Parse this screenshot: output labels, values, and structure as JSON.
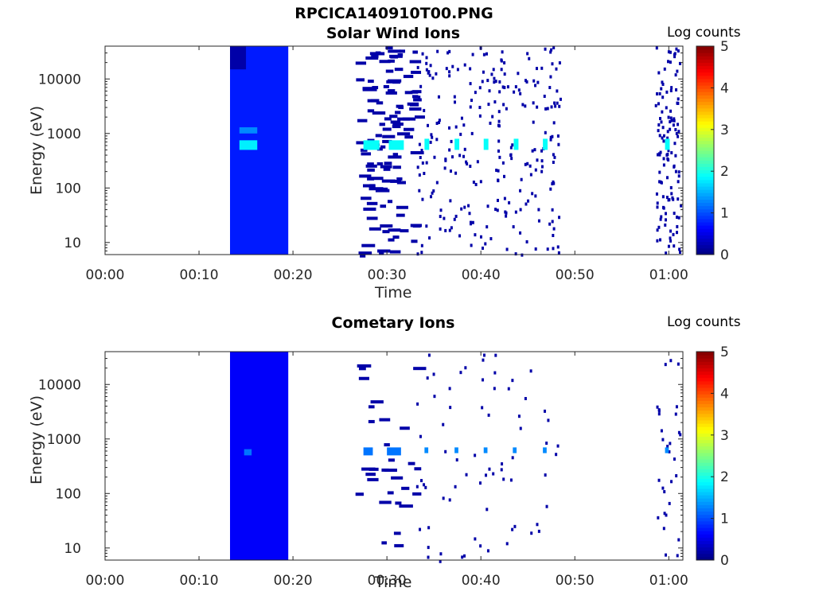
{
  "figure": {
    "title": "RPCICA140910T00.PNG"
  },
  "colorbar": {
    "label": "Log counts",
    "ticks": [
      "0",
      "1",
      "2",
      "3",
      "4",
      "5"
    ],
    "range": [
      0,
      5
    ],
    "colormap": "jet"
  },
  "chart_data": [
    {
      "type": "heatmap",
      "title": "Solar Wind Ions",
      "xlabel": "Time",
      "ylabel": "Energy (eV)",
      "xticks": [
        "00:00",
        "00:10",
        "00:20",
        "00:30",
        "00:40",
        "00:50",
        "01:00"
      ],
      "yticks": [
        "10",
        "100",
        "1000",
        "10000"
      ],
      "xlim_minutes": [
        0,
        61.5
      ],
      "ylim_eV": [
        6,
        40000
      ],
      "yscale": "log",
      "colorbar_label": "Log counts",
      "blocks": [
        {
          "t0": 13.3,
          "t1": 19.5,
          "e0": 6,
          "e1": 40000,
          "value": 0.75
        },
        {
          "t0": 14.3,
          "t1": 16.2,
          "e0": 500,
          "e1": 750,
          "value": 1.8
        },
        {
          "t0": 14.3,
          "t1": 16.2,
          "e0": 1000,
          "e1": 1300,
          "value": 1.3
        },
        {
          "t0": 13.3,
          "t1": 15.0,
          "e0": 15000,
          "e1": 40000,
          "value": 0.2
        },
        {
          "t0": 27.5,
          "t1": 29.2,
          "e0": 500,
          "e1": 750,
          "value": 1.9
        },
        {
          "t0": 30.2,
          "t1": 31.8,
          "e0": 500,
          "e1": 750,
          "value": 1.9
        },
        {
          "t0": 34.0,
          "t1": 34.5,
          "e0": 500,
          "e1": 800,
          "value": 1.9
        },
        {
          "t0": 37.2,
          "t1": 37.7,
          "e0": 500,
          "e1": 800,
          "value": 1.9
        },
        {
          "t0": 40.3,
          "t1": 40.8,
          "e0": 500,
          "e1": 800,
          "value": 1.9
        },
        {
          "t0": 43.5,
          "t1": 44.0,
          "e0": 500,
          "e1": 800,
          "value": 1.9
        },
        {
          "t0": 46.6,
          "t1": 47.1,
          "e0": 500,
          "e1": 800,
          "value": 1.9
        },
        {
          "t0": 59.6,
          "t1": 60.1,
          "e0": 500,
          "e1": 800,
          "value": 1.9
        }
      ]
    },
    {
      "type": "heatmap",
      "title": "Cometary Ions",
      "xlabel": "Time",
      "ylabel": "Energy (eV)",
      "xticks": [
        "00:00",
        "00:10",
        "00:20",
        "00:30",
        "00:40",
        "00:50",
        "01:00"
      ],
      "yticks": [
        "10",
        "100",
        "1000",
        "10000"
      ],
      "xlim_minutes": [
        0,
        61.5
      ],
      "ylim_eV": [
        6,
        40000
      ],
      "yscale": "log",
      "colorbar_label": "Log counts",
      "blocks": [
        {
          "t0": 13.3,
          "t1": 19.5,
          "e0": 6,
          "e1": 40000,
          "value": 0.6
        },
        {
          "t0": 14.8,
          "t1": 15.6,
          "e0": 500,
          "e1": 650,
          "value": 1.2
        },
        {
          "t0": 27.5,
          "t1": 28.5,
          "e0": 500,
          "e1": 700,
          "value": 1.2
        },
        {
          "t0": 30.0,
          "t1": 31.5,
          "e0": 500,
          "e1": 700,
          "value": 1.2
        },
        {
          "t0": 34.0,
          "t1": 34.4,
          "e0": 550,
          "e1": 700,
          "value": 1.3
        },
        {
          "t0": 37.2,
          "t1": 37.6,
          "e0": 550,
          "e1": 700,
          "value": 1.3
        },
        {
          "t0": 40.3,
          "t1": 40.7,
          "e0": 550,
          "e1": 700,
          "value": 1.3
        },
        {
          "t0": 43.4,
          "t1": 43.8,
          "e0": 550,
          "e1": 700,
          "value": 1.3
        },
        {
          "t0": 46.6,
          "t1": 47.0,
          "e0": 550,
          "e1": 700,
          "value": 1.3
        },
        {
          "t0": 59.6,
          "t1": 60.0,
          "e0": 550,
          "e1": 700,
          "value": 1.3
        }
      ]
    }
  ]
}
